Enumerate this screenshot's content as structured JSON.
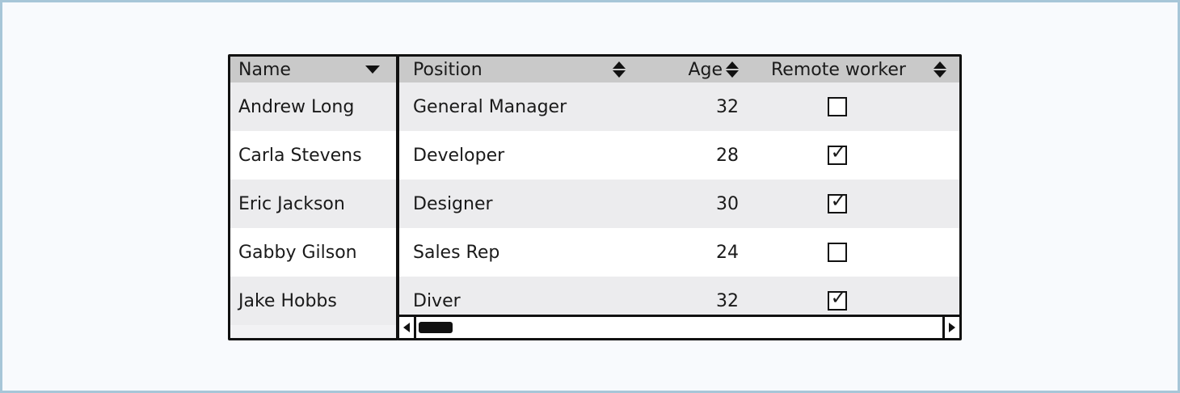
{
  "columns": {
    "name": "Name",
    "position": "Position",
    "age": "Age",
    "remote": "Remote worker"
  },
  "icons": {
    "name_sort": "caret-down-icon",
    "column_sort": "sort-up-down-icon",
    "checkbox_checked": "checkbox-checked-icon",
    "checkbox_unchecked": "checkbox-unchecked-icon"
  },
  "rows": [
    {
      "name": "Andrew Long",
      "position": "General Manager",
      "age": "32",
      "remote": false
    },
    {
      "name": "Carla Stevens",
      "position": "Developer",
      "age": "28",
      "remote": true
    },
    {
      "name": "Eric Jackson",
      "position": "Designer",
      "age": "30",
      "remote": true
    },
    {
      "name": "Gabby Gilson",
      "position": "Sales Rep",
      "age": "24",
      "remote": false
    },
    {
      "name": "Jake Hobbs",
      "position": "Diver",
      "age": "32",
      "remote": true
    }
  ],
  "colors": {
    "frame_border": "#a7c6d8",
    "header_bg": "#c9c9c9",
    "row_alt_bg": "#ececee"
  }
}
